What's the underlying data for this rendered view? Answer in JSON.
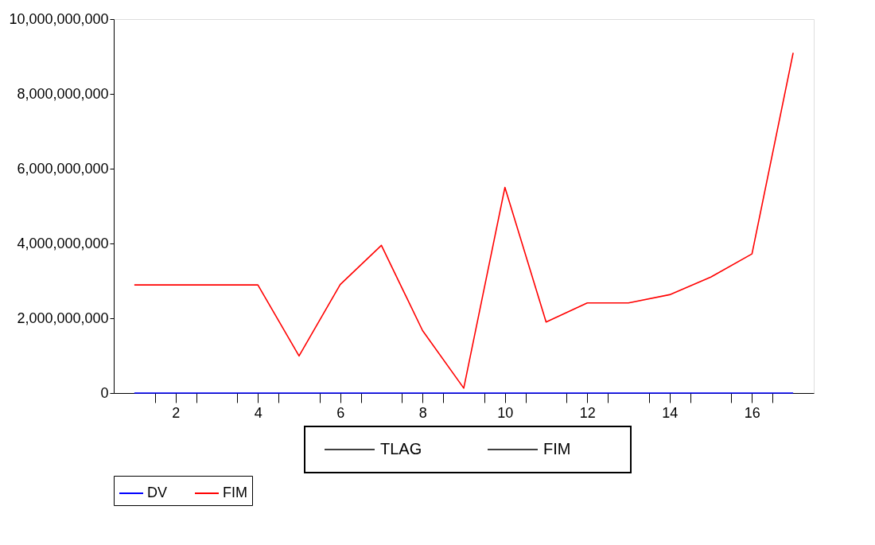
{
  "chart_data": {
    "type": "line",
    "x": [
      1,
      2,
      3,
      4,
      5,
      6,
      7,
      8,
      9,
      10,
      11,
      12,
      13,
      14,
      15,
      16,
      17
    ],
    "series": [
      {
        "name": "DV",
        "color": "#0000ff",
        "values": [
          0,
          0,
          0,
          0,
          0,
          0,
          0,
          0,
          0,
          0,
          0,
          0,
          0,
          0,
          0,
          0,
          0
        ]
      },
      {
        "name": "FIM",
        "color": "#ff0000",
        "values": [
          2890000000,
          2890000000,
          2890000000,
          2890000000,
          990000000,
          2900000000,
          3950000000,
          1670000000,
          130000000,
          5500000000,
          1900000000,
          2410000000,
          2410000000,
          2630000000,
          3100000000,
          3720000000,
          9100000000
        ]
      }
    ],
    "xlim": [
      0.5,
      17.5
    ],
    "xticks": [
      {
        "value": 1.5,
        "label": null
      },
      {
        "value": 2,
        "label": "2"
      },
      {
        "value": 2.5,
        "label": null
      },
      {
        "value": 3.5,
        "label": null
      },
      {
        "value": 4,
        "label": "4"
      },
      {
        "value": 4.5,
        "label": null
      },
      {
        "value": 5.5,
        "label": null
      },
      {
        "value": 6,
        "label": "6"
      },
      {
        "value": 6.5,
        "label": null
      },
      {
        "value": 7.5,
        "label": null
      },
      {
        "value": 8,
        "label": "8"
      },
      {
        "value": 8.5,
        "label": null
      },
      {
        "value": 9.5,
        "label": null
      },
      {
        "value": 10,
        "label": "10"
      },
      {
        "value": 10.5,
        "label": null
      },
      {
        "value": 11.5,
        "label": null
      },
      {
        "value": 12,
        "label": "12"
      },
      {
        "value": 12.5,
        "label": null
      },
      {
        "value": 13.5,
        "label": null
      },
      {
        "value": 14,
        "label": "14"
      },
      {
        "value": 14.5,
        "label": null
      },
      {
        "value": 15.5,
        "label": null
      },
      {
        "value": 16,
        "label": "16"
      },
      {
        "value": 16.5,
        "label": null
      }
    ],
    "ylim": [
      0,
      10000000000
    ],
    "yticks": [
      {
        "value": 0,
        "label": "0"
      },
      {
        "value": 2000000000,
        "label": "2,000,000,000"
      },
      {
        "value": 4000000000,
        "label": "4,000,000,000"
      },
      {
        "value": 6000000000,
        "label": "6,000,000,000"
      },
      {
        "value": 8000000000,
        "label": "8,000,000,000"
      },
      {
        "value": 10000000000,
        "label": "10,000,000,000"
      }
    ],
    "annotations": [
      "TLAG",
      "FIM"
    ],
    "grid": false,
    "legend": "bottom",
    "marker": "none",
    "line_style": "solid"
  }
}
